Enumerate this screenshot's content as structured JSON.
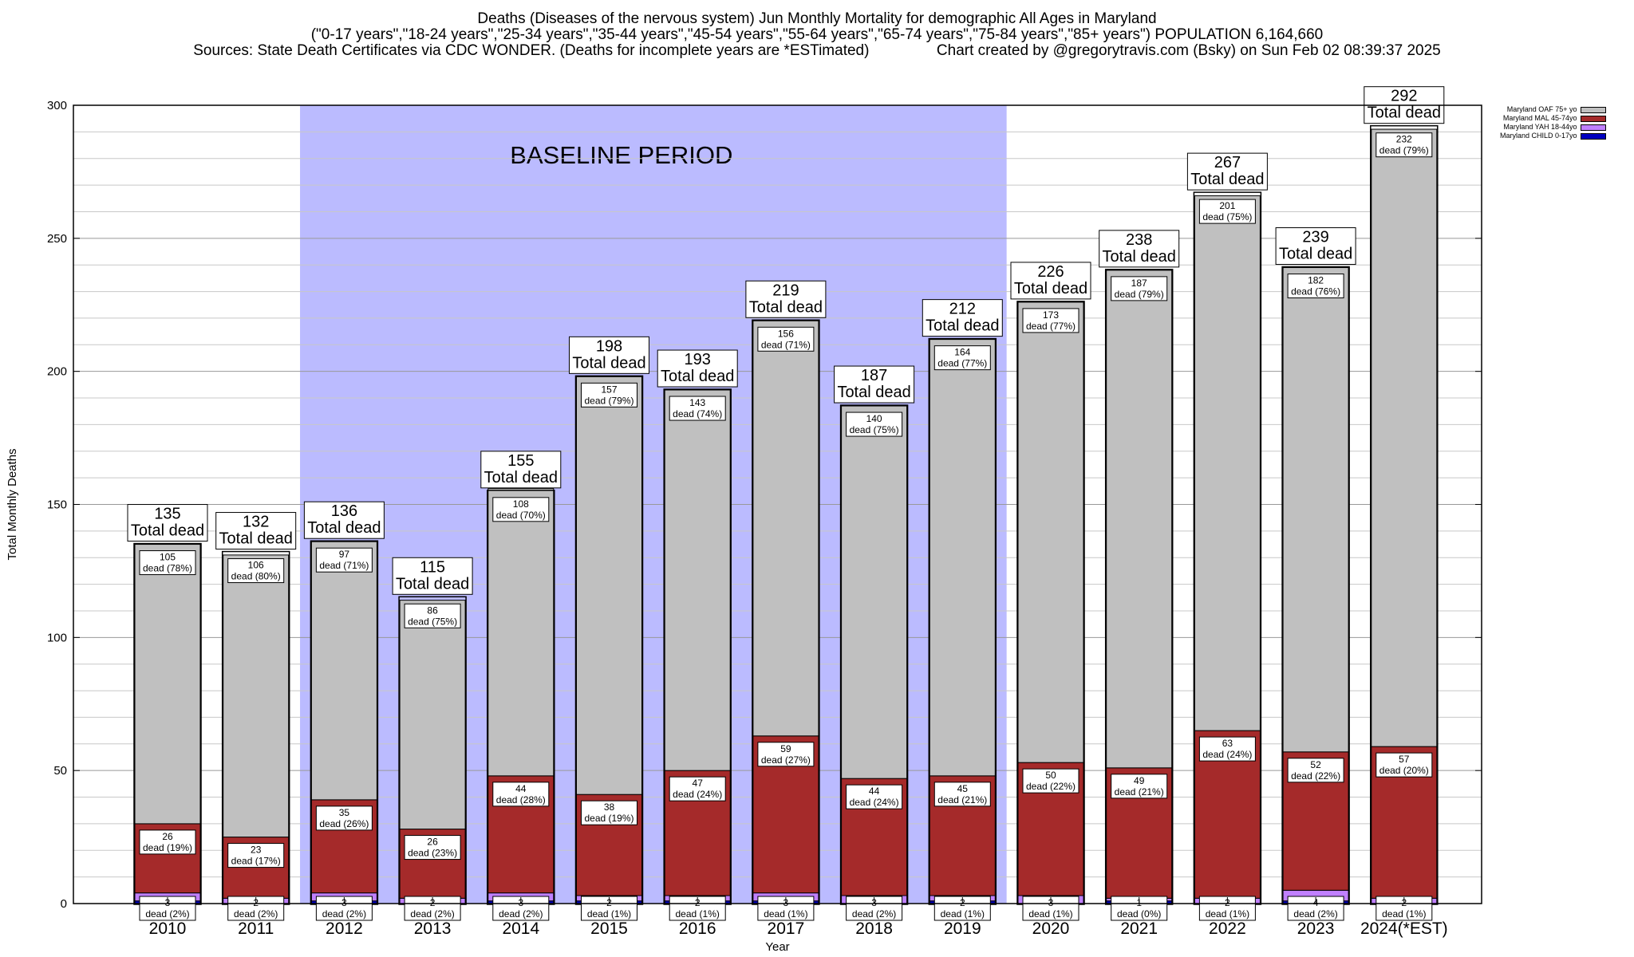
{
  "header": {
    "title_line1": "Deaths (Diseases of the nervous system) Jun Monthly Mortality for demographic All Ages in Maryland",
    "title_line2": "(\"0-17 years\",\"18-24 years\",\"25-34 years\",\"35-44 years\",\"45-54 years\",\"55-64 years\",\"65-74 years\",\"75-84 years\",\"85+ years\") POPULATION 6,164,660",
    "title_line3_left": "Sources: State Death Certificates via CDC WONDER. (Deaths for incomplete years are *ESTimated)",
    "title_line3_right": "Chart created by @gregorytravis.com (Bsky) on Sun Feb 02 08:39:37 2025"
  },
  "colors": {
    "oaf": "#c0c0c0",
    "mal": "#a52a2a",
    "yah": "#c080ff",
    "child": "#0000c0",
    "baseline": "#bbbbff"
  },
  "chart_data": {
    "type": "bar",
    "stacked": true,
    "xlabel": "Year",
    "ylabel": "Total Monthly Deaths",
    "ylim": [
      0,
      300
    ],
    "yticks": [
      0,
      50,
      100,
      150,
      200,
      250,
      300
    ],
    "grid": true,
    "legend_position": "top-right",
    "annotation": "BASELINE PERIOD",
    "baseline_range": [
      "2012",
      "2019"
    ],
    "total_label_suffix": "Total dead",
    "segment_label_word": "dead",
    "categories": [
      "2010",
      "2011",
      "2012",
      "2013",
      "2014",
      "2015",
      "2016",
      "2017",
      "2018",
      "2019",
      "2020",
      "2021",
      "2022",
      "2023",
      "2024(*EST)"
    ],
    "totals": [
      135,
      132,
      136,
      115,
      155,
      198,
      193,
      219,
      187,
      212,
      226,
      238,
      267,
      239,
      292
    ],
    "series": [
      {
        "name": "Maryland CHILD 0-17yo",
        "key": "child",
        "values": [
          1,
          0,
          1,
          0,
          1,
          1,
          1,
          1,
          0,
          1,
          0,
          1,
          0,
          1,
          0
        ]
      },
      {
        "name": "Maryland YAH 18-44yo",
        "key": "yah",
        "values": [
          3,
          2,
          3,
          2,
          3,
          2,
          2,
          3,
          3,
          2,
          3,
          1,
          2,
          4,
          2
        ],
        "labels": [
          "(2%)",
          "(2%)",
          "(2%)",
          "(2%)",
          "(2%)",
          "(1%)",
          "(1%)",
          "(1%)",
          "(2%)",
          "(1%)",
          "(1%)",
          "(0%)",
          "(1%)",
          "(2%)",
          "(1%)"
        ]
      },
      {
        "name": "Maryland MAL 45-74yo",
        "key": "mal",
        "values": [
          26,
          23,
          35,
          26,
          44,
          38,
          47,
          59,
          44,
          45,
          50,
          49,
          63,
          52,
          57
        ],
        "labels": [
          "(19%)",
          "(17%)",
          "(26%)",
          "(23%)",
          "(28%)",
          "(19%)",
          "(24%)",
          "(27%)",
          "(24%)",
          "(21%)",
          "(22%)",
          "(21%)",
          "(24%)",
          "(22%)",
          "(20%)"
        ]
      },
      {
        "name": "Maryland OAF 75+ yo",
        "key": "oaf",
        "values": [
          105,
          106,
          97,
          86,
          108,
          157,
          143,
          156,
          140,
          164,
          173,
          187,
          201,
          182,
          232
        ],
        "labels": [
          "(78%)",
          "(80%)",
          "(71%)",
          "(75%)",
          "(70%)",
          "(79%)",
          "(74%)",
          "(71%)",
          "(75%)",
          "(77%)",
          "(77%)",
          "(79%)",
          "(75%)",
          "(76%)",
          "(79%)"
        ]
      }
    ]
  },
  "legend": {
    "items": [
      {
        "label": "Maryland OAF 75+ yo",
        "key": "oaf"
      },
      {
        "label": "Maryland MAL 45-74yo",
        "key": "mal"
      },
      {
        "label": "Maryland YAH 18-44yo",
        "key": "yah"
      },
      {
        "label": "Maryland CHILD 0-17yo",
        "key": "child"
      }
    ]
  }
}
